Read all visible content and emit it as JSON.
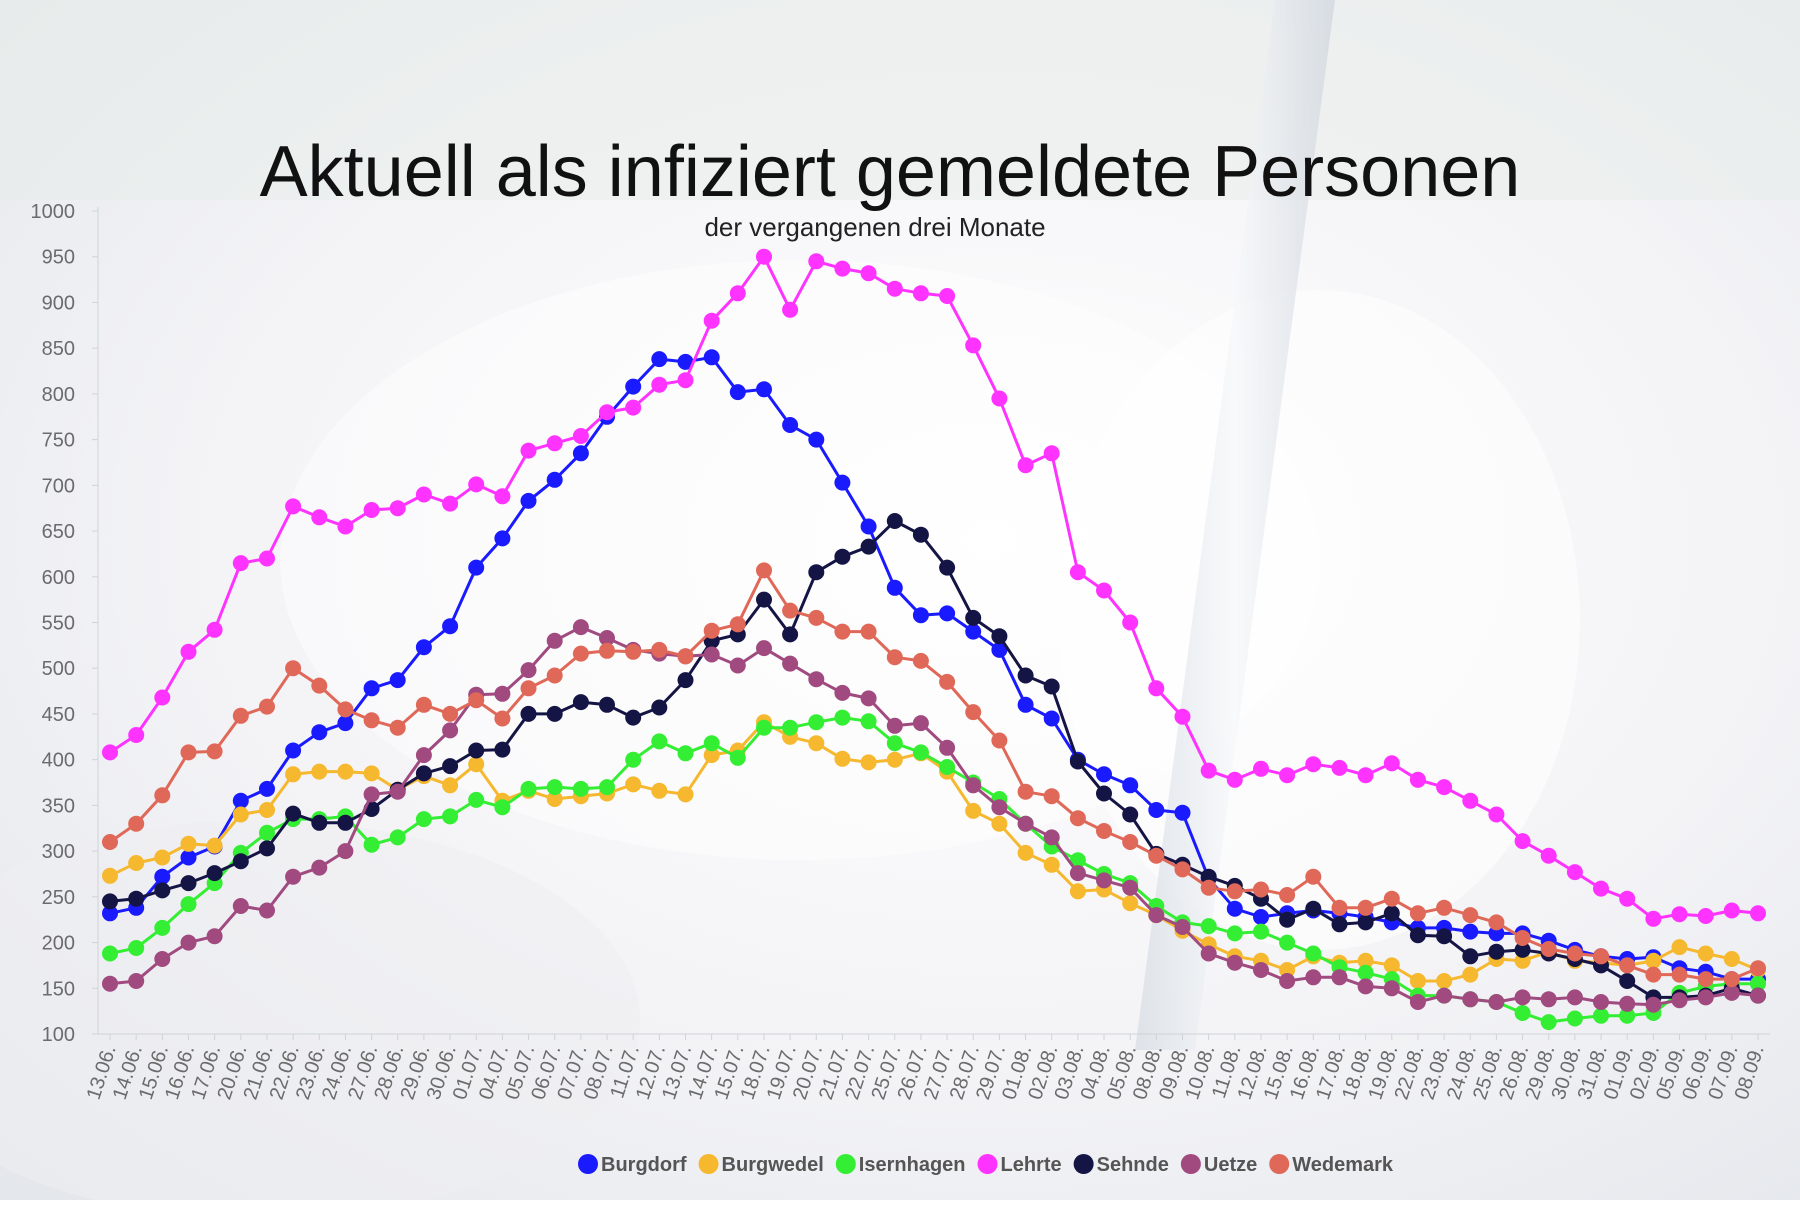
{
  "chart_data": {
    "type": "line",
    "title": "Aktuell als infiziert gemeldete Personen",
    "subtitle": "der vergangenen drei Monate",
    "ylim": [
      100,
      1000
    ],
    "yticks": [
      100,
      150,
      200,
      250,
      300,
      350,
      400,
      450,
      500,
      550,
      600,
      650,
      700,
      750,
      800,
      850,
      900,
      950,
      1000
    ],
    "legend_position": "bottom",
    "grid": false,
    "x": [
      "13.06.",
      "14.06.",
      "15.06.",
      "16.06.",
      "17.06.",
      "20.06.",
      "21.06.",
      "22.06.",
      "23.06.",
      "24.06.",
      "27.06.",
      "28.06.",
      "29.06.",
      "30.06.",
      "01.07.",
      "04.07.",
      "05.07.",
      "06.07.",
      "07.07.",
      "08.07.",
      "11.07.",
      "12.07.",
      "13.07.",
      "14.07.",
      "15.07.",
      "18.07.",
      "19.07.",
      "20.07.",
      "21.07.",
      "22.07.",
      "25.07.",
      "26.07.",
      "27.07.",
      "28.07.",
      "29.07.",
      "01.08.",
      "02.08.",
      "03.08.",
      "04.08.",
      "05.08.",
      "08.08.",
      "09.08.",
      "10.08.",
      "11.08.",
      "12.08.",
      "15.08.",
      "16.08.",
      "17.08.",
      "18.08.",
      "19.08.",
      "22.08.",
      "23.08.",
      "24.08.",
      "25.08.",
      "26.08.",
      "29.08.",
      "30.08.",
      "31.08.",
      "01.09.",
      "02.09.",
      "05.09.",
      "06.09.",
      "07.09.",
      "08.09."
    ],
    "series": [
      {
        "name": "Burgdorf",
        "color": "#1a1aff",
        "values": [
          232,
          238,
          272,
          293,
          305,
          355,
          368,
          410,
          430,
          440,
          478,
          487,
          523,
          546,
          610,
          642,
          683,
          706,
          735,
          775,
          808,
          838,
          835,
          840,
          802,
          805,
          766,
          750,
          703,
          655,
          588,
          558,
          560,
          540,
          520,
          460,
          445,
          400,
          384,
          372,
          345,
          342,
          270,
          237,
          228,
          232,
          235,
          232,
          228,
          222,
          216,
          216,
          212,
          210,
          210,
          202,
          192,
          185,
          182,
          184,
          172,
          168,
          160,
          160
        ]
      },
      {
        "name": "Burgwedel",
        "color": "#f5b82e",
        "values": [
          273,
          287,
          293,
          308,
          306,
          340,
          345,
          384,
          387,
          387,
          385,
          367,
          382,
          372,
          395,
          355,
          366,
          357,
          360,
          363,
          373,
          366,
          362,
          405,
          410,
          441,
          425,
          418,
          401,
          397,
          400,
          407,
          387,
          344,
          330,
          298,
          285,
          256,
          258,
          243,
          230,
          213,
          198,
          185,
          180,
          170,
          185,
          178,
          180,
          175,
          158,
          158,
          165,
          182,
          180,
          190,
          180,
          178,
          175,
          180,
          195,
          188,
          182,
          170
        ]
      },
      {
        "name": "Isernhagen",
        "color": "#33ee33",
        "values": [
          188,
          194,
          216,
          242,
          265,
          298,
          320,
          335,
          335,
          338,
          307,
          315,
          335,
          338,
          356,
          348,
          368,
          370,
          368,
          370,
          400,
          420,
          407,
          418,
          402,
          435,
          435,
          441,
          446,
          442,
          418,
          408,
          392,
          375,
          357,
          330,
          305,
          290,
          275,
          265,
          240,
          222,
          218,
          210,
          212,
          200,
          188,
          173,
          167,
          160,
          142,
          142,
          138,
          135,
          123,
          113,
          117,
          120,
          120,
          123,
          145,
          152,
          155,
          155
        ]
      },
      {
        "name": "Lehrte",
        "color": "#ff33ff",
        "values": [
          408,
          427,
          468,
          518,
          542,
          615,
          620,
          677,
          665,
          655,
          673,
          675,
          690,
          680,
          701,
          688,
          738,
          746,
          754,
          780,
          785,
          810,
          815,
          880,
          910,
          950,
          892,
          945,
          937,
          932,
          915,
          910,
          907,
          853,
          795,
          722,
          735,
          605,
          585,
          550,
          478,
          447,
          388,
          378,
          390,
          383,
          395,
          391,
          383,
          396,
          378,
          370,
          355,
          340,
          311,
          295,
          277,
          259,
          248,
          226,
          231,
          229,
          235,
          232
        ]
      },
      {
        "name": "Sehnde",
        "color": "#151545",
        "values": [
          245,
          248,
          257,
          265,
          276,
          289,
          303,
          341,
          331,
          331,
          346,
          367,
          385,
          393,
          410,
          411,
          450,
          450,
          463,
          460,
          446,
          457,
          487,
          530,
          537,
          575,
          537,
          605,
          622,
          633,
          661,
          646,
          610,
          555,
          535,
          492,
          480,
          398,
          363,
          340,
          297,
          285,
          272,
          262,
          248,
          225,
          237,
          220,
          222,
          232,
          208,
          207,
          185,
          190,
          192,
          188,
          182,
          175,
          158,
          140,
          140,
          142,
          150,
          142
        ]
      },
      {
        "name": "Uetze",
        "color": "#a04a80",
        "values": [
          155,
          158,
          182,
          200,
          207,
          240,
          235,
          272,
          282,
          300,
          362,
          365,
          405,
          432,
          471,
          472,
          498,
          530,
          545,
          533,
          520,
          516,
          513,
          515,
          503,
          522,
          505,
          488,
          473,
          467,
          437,
          440,
          413,
          372,
          348,
          330,
          315,
          276,
          268,
          260,
          230,
          217,
          188,
          178,
          170,
          158,
          162,
          162,
          152,
          150,
          135,
          142,
          138,
          135,
          140,
          138,
          140,
          135,
          133,
          132,
          137,
          140,
          145,
          142
        ]
      },
      {
        "name": "Wedemark",
        "color": "#e06858",
        "values": [
          310,
          330,
          361,
          408,
          409,
          448,
          458,
          500,
          481,
          455,
          443,
          435,
          460,
          450,
          465,
          445,
          478,
          492,
          516,
          519,
          518,
          520,
          513,
          541,
          548,
          607,
          563,
          555,
          540,
          540,
          512,
          508,
          485,
          452,
          421,
          365,
          360,
          336,
          322,
          310,
          295,
          280,
          260,
          256,
          258,
          252,
          272,
          238,
          238,
          248,
          232,
          238,
          230,
          222,
          205,
          193,
          188,
          185,
          175,
          165,
          165,
          160,
          160,
          172
        ]
      }
    ]
  }
}
